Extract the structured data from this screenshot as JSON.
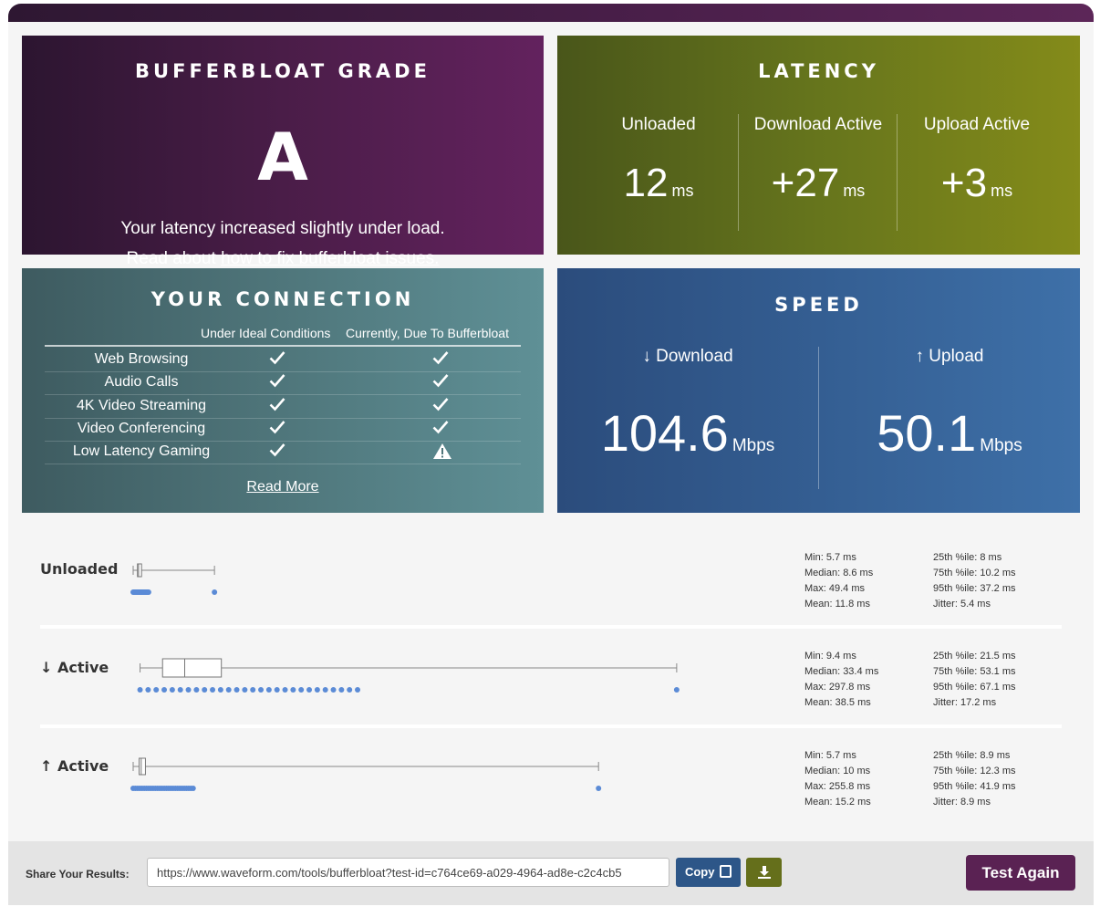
{
  "grade": {
    "title": "BUFFERBLOAT GRADE",
    "letter": "A",
    "message": "Your latency increased slightly under load.",
    "read_prefix": "Read about ",
    "read_link": "how to fix bufferbloat issues."
  },
  "latency": {
    "title": "LATENCY",
    "columns": [
      {
        "label": "Unloaded",
        "value": "12",
        "unit": "ms"
      },
      {
        "label": "Download Active",
        "value": "+27",
        "unit": "ms"
      },
      {
        "label": "Upload Active",
        "value": "+3",
        "unit": "ms"
      }
    ]
  },
  "connection": {
    "title": "YOUR CONNECTION",
    "col1": "Under Ideal Conditions",
    "col2": "Currently, Due To Bufferbloat",
    "rows": [
      {
        "name": "Web Browsing",
        "ideal": "check",
        "current": "check"
      },
      {
        "name": "Audio Calls",
        "ideal": "check",
        "current": "check"
      },
      {
        "name": "4K Video Streaming",
        "ideal": "check",
        "current": "check"
      },
      {
        "name": "Video Conferencing",
        "ideal": "check",
        "current": "check"
      },
      {
        "name": "Low Latency Gaming",
        "ideal": "check",
        "current": "warning"
      }
    ],
    "read_more": "Read More"
  },
  "speed": {
    "title": "SPEED",
    "download": {
      "label": "↓ Download",
      "value": "104.6",
      "unit": "Mbps"
    },
    "upload": {
      "label": "↑ Upload",
      "value": "50.1",
      "unit": "Mbps"
    }
  },
  "distributions": [
    {
      "label": "Unloaded",
      "stats_left": [
        "Min: 5.7 ms",
        "Median: 8.6 ms",
        "Max: 49.4 ms",
        "Mean: 11.8 ms"
      ],
      "stats_right": [
        "25th %ile: 8 ms",
        "75th %ile: 10.2 ms",
        "95th %ile: 37.2 ms",
        "Jitter: 5.4 ms"
      ],
      "box": {
        "min": 5.7,
        "q1": 8,
        "median": 8.6,
        "q3": 10.2,
        "max": 49.4
      }
    },
    {
      "label": "↓ Active",
      "stats_left": [
        "Min: 9.4 ms",
        "Median: 33.4 ms",
        "Max: 297.8 ms",
        "Mean: 38.5 ms"
      ],
      "stats_right": [
        "25th %ile: 21.5 ms",
        "75th %ile: 53.1 ms",
        "95th %ile: 67.1 ms",
        "Jitter: 17.2 ms"
      ],
      "box": {
        "min": 9.4,
        "q1": 21.5,
        "median": 33.4,
        "q3": 53.1,
        "max": 297.8
      }
    },
    {
      "label": "↑ Active",
      "stats_left": [
        "Min: 5.7 ms",
        "Median: 10 ms",
        "Max: 255.8 ms",
        "Mean: 15.2 ms"
      ],
      "stats_right": [
        "25th %ile: 8.9 ms",
        "75th %ile: 12.3 ms",
        "95th %ile: 41.9 ms",
        "Jitter: 8.9 ms"
      ],
      "box": {
        "min": 5.7,
        "q1": 8.9,
        "median": 10,
        "q3": 12.3,
        "max": 255.8
      }
    }
  ],
  "share": {
    "label": "Share Your Results:",
    "url": "https://www.waveform.com/tools/bufferbloat?test-id=c764ce69-a029-4964-ad8e-c2c4cb5",
    "copy_label": "Copy",
    "download_icon": "download-icon",
    "test_again": "Test Again"
  },
  "colors": {
    "grade_bg": "#4a1d48",
    "latency_bg": "#66751c",
    "connection_bg": "#4f767b",
    "speed_bg": "#345e92",
    "dot": "#5b8bd6",
    "test_again_bg": "#5a2253"
  }
}
